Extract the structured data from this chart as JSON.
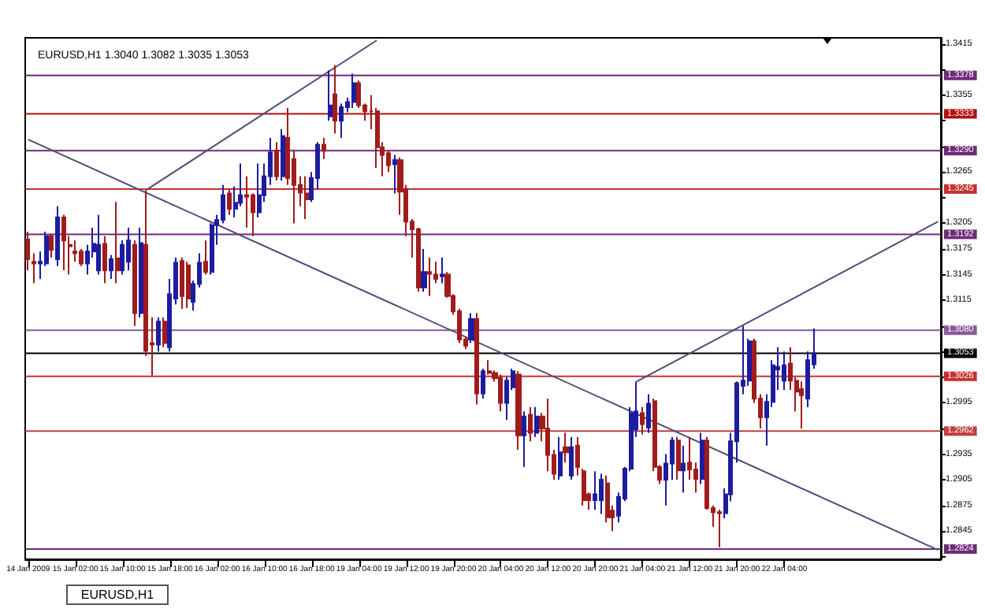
{
  "chart_data": {
    "type": "candlestick",
    "title": "EURUSD,H1 1.3040 1.3082 1.3035 1.3053",
    "annotations": [
      "EURUSD,H1"
    ],
    "categories": [
      "14 Jan 2009",
      null,
      null,
      null,
      null,
      null,
      null,
      null,
      "15 Jan 02:00",
      null,
      null,
      null,
      null,
      null,
      null,
      null,
      "15 Jan 10:00",
      null,
      null,
      null,
      null,
      null,
      null,
      null,
      "15 Jan 18:00",
      null,
      null,
      null,
      null,
      null,
      null,
      null,
      "16 Jan 02:00",
      null,
      null,
      null,
      null,
      null,
      null,
      null,
      "16 Jan 10:00",
      null,
      null,
      null,
      null,
      null,
      null,
      null,
      "16 Jan 18:00",
      null,
      null,
      null,
      null,
      null,
      null,
      null,
      "19 Jan 04:00",
      null,
      null,
      null,
      null,
      null,
      null,
      null,
      "19 Jan 12:00",
      null,
      null,
      null,
      null,
      null,
      null,
      null,
      "19 Jan 20:00",
      null,
      null,
      null,
      null,
      null,
      null,
      null,
      "20 Jan 04:00",
      null,
      null,
      null,
      null,
      null,
      null,
      null,
      "20 Jan 12:00",
      null,
      null,
      null,
      null,
      null,
      null,
      null,
      "20 Jan 20:00",
      null,
      null,
      null,
      null,
      null,
      null,
      null,
      "21 Jan 04:00",
      null,
      null,
      null,
      null,
      null,
      null,
      null,
      "21 Jan 12:00",
      null,
      null,
      null,
      null,
      null,
      null,
      null,
      "21 Jan 20:00",
      null,
      null,
      null,
      null,
      null,
      null,
      null,
      "22 Jan 04:00",
      null,
      null,
      null,
      null,
      null,
      null,
      null,
      null,
      null,
      null,
      null,
      null,
      null,
      null,
      null,
      null,
      null,
      null,
      null,
      null,
      null,
      null,
      null,
      null,
      null,
      null
    ],
    "ylim": [
      1.2812,
      1.3422
    ],
    "yticks": [
      {
        "value": 1.2815,
        "label": null
      },
      1.2845,
      1.2875,
      1.2905,
      1.2935,
      {
        "value": 1.2965,
        "label": null
      },
      1.2995,
      {
        "value": 1.3025,
        "label": null
      },
      {
        "value": 1.3055,
        "label": null
      },
      {
        "value": 1.3085,
        "label": null
      },
      1.3115,
      1.3145,
      1.3175,
      1.3205,
      {
        "value": 1.3235,
        "label": null
      },
      1.3265,
      {
        "value": 1.3295,
        "label": null
      },
      {
        "value": 1.3325,
        "label": null
      },
      1.3355,
      {
        "value": 1.3385,
        "label": null
      },
      1.3415
    ],
    "ref_lines": [
      {
        "axis": "y",
        "value": 1.3378,
        "label": "1.3378",
        "color": "#6e2a78"
      },
      {
        "axis": "y",
        "value": 1.3333,
        "label": "1.3333",
        "color": "#b01010"
      },
      {
        "axis": "y",
        "value": 1.329,
        "label": "1.3290",
        "color": "#6e2a78"
      },
      {
        "axis": "y",
        "value": 1.3245,
        "label": "1.3245",
        "color": "#c83030"
      },
      {
        "axis": "y",
        "value": 1.3192,
        "label": "1.3192",
        "color": "#6e2a78"
      },
      {
        "axis": "y",
        "value": 1.308,
        "label": "1.3080",
        "color": "#8a5a9a"
      },
      {
        "axis": "y",
        "value": 1.3053,
        "label": "1.3053",
        "color": "#000000"
      },
      {
        "axis": "y",
        "value": 1.3026,
        "label": "1.3026",
        "color": "#c83030"
      },
      {
        "axis": "y",
        "value": 1.2962,
        "label": "1.2962",
        "color": "#c04040"
      },
      {
        "axis": "y",
        "value": 1.2824,
        "label": "1.2824",
        "color": "#6e2a78"
      }
    ],
    "series": [
      {
        "type": "candlestick",
        "ohlc": [
          [
            1.3186,
            1.3195,
            1.315,
            1.3163
          ],
          [
            1.316,
            1.317,
            1.3135,
            1.3158
          ],
          [
            1.3158,
            1.3172,
            1.314,
            1.316
          ],
          [
            1.3158,
            1.3195,
            1.3155,
            1.319
          ],
          [
            1.319,
            1.3192,
            1.3165,
            1.3174
          ],
          [
            1.3163,
            1.3225,
            1.3155,
            1.3212
          ],
          [
            1.3212,
            1.3215,
            1.315,
            1.3185
          ],
          [
            1.318,
            1.319,
            1.3145,
            1.3178
          ],
          [
            1.3172,
            1.3185,
            1.316,
            1.317
          ],
          [
            1.3172,
            1.3175,
            1.3155,
            1.3158
          ],
          [
            1.3158,
            1.318,
            1.3145,
            1.3172
          ],
          [
            1.3172,
            1.32,
            1.3165,
            1.3181
          ],
          [
            1.315,
            1.3215,
            1.3145,
            1.318
          ],
          [
            1.3181,
            1.319,
            1.3135,
            1.315
          ],
          [
            1.315,
            1.3168,
            1.314,
            1.3163
          ],
          [
            1.3164,
            1.323,
            1.3135,
            1.315
          ],
          [
            1.315,
            1.3185,
            1.3145,
            1.318
          ],
          [
            1.316,
            1.32,
            1.315,
            1.3185
          ],
          [
            1.318,
            1.3185,
            1.3085,
            1.31
          ],
          [
            1.31,
            1.32,
            1.3095,
            1.3182
          ],
          [
            1.318,
            1.3244,
            1.305,
            1.3056
          ],
          [
            1.3065,
            1.3095,
            1.3027,
            1.3063
          ],
          [
            1.3063,
            1.3095,
            1.3055,
            1.309
          ],
          [
            1.309,
            1.3095,
            1.306,
            1.3065
          ],
          [
            1.306,
            1.314,
            1.3055,
            1.3122
          ],
          [
            1.3117,
            1.3165,
            1.311,
            1.3159
          ],
          [
            1.3161,
            1.3165,
            1.3105,
            1.312
          ],
          [
            1.3156,
            1.316,
            1.3106,
            1.3117
          ],
          [
            1.3113,
            1.3138,
            1.3103,
            1.3134
          ],
          [
            1.3134,
            1.317,
            1.313,
            1.3159
          ],
          [
            1.316,
            1.3185,
            1.3145,
            1.3148
          ],
          [
            1.3148,
            1.3205,
            1.3145,
            1.3203
          ],
          [
            1.3203,
            1.3215,
            1.318,
            1.3209
          ],
          [
            1.3209,
            1.325,
            1.3205,
            1.3238
          ],
          [
            1.324,
            1.3245,
            1.3215,
            1.3222
          ],
          [
            1.3222,
            1.3248,
            1.3212,
            1.3229
          ],
          [
            1.3229,
            1.3275,
            1.3225,
            1.3238
          ],
          [
            1.3238,
            1.326,
            1.32,
            1.3236
          ],
          [
            1.3238,
            1.324,
            1.319,
            1.3218
          ],
          [
            1.3218,
            1.3275,
            1.3212,
            1.3238
          ],
          [
            1.3238,
            1.3275,
            1.323,
            1.326
          ],
          [
            1.326,
            1.3305,
            1.325,
            1.3288
          ],
          [
            1.329,
            1.33,
            1.3255,
            1.326
          ],
          [
            1.326,
            1.3315,
            1.3255,
            1.3307
          ],
          [
            1.3305,
            1.334,
            1.325,
            1.3258
          ],
          [
            1.328,
            1.329,
            1.3205,
            1.325
          ],
          [
            1.325,
            1.326,
            1.3225,
            1.3241
          ],
          [
            1.324,
            1.326,
            1.321,
            1.3233
          ],
          [
            1.3233,
            1.3265,
            1.323,
            1.3258
          ],
          [
            1.3258,
            1.33,
            1.3245,
            1.3297
          ],
          [
            1.3297,
            1.3305,
            1.328,
            1.329
          ],
          [
            1.333,
            1.3384,
            1.3325,
            1.3343
          ],
          [
            1.3356,
            1.339,
            1.331,
            1.3325
          ],
          [
            1.3325,
            1.3345,
            1.3305,
            1.3341
          ],
          [
            1.3341,
            1.3352,
            1.3335,
            1.3347
          ],
          [
            1.3347,
            1.338,
            1.334,
            1.3369
          ],
          [
            1.3369,
            1.3372,
            1.334,
            1.3343
          ],
          [
            1.3343,
            1.3345,
            1.3325,
            1.3336
          ],
          [
            1.3336,
            1.3355,
            1.3315,
            1.3336
          ],
          [
            1.3336,
            1.334,
            1.327,
            1.3294
          ],
          [
            1.3294,
            1.33,
            1.326,
            1.3285
          ],
          [
            1.3287,
            1.329,
            1.3265,
            1.3273
          ],
          [
            1.3274,
            1.3285,
            1.324,
            1.3279
          ],
          [
            1.3279,
            1.3282,
            1.3215,
            1.3242
          ],
          [
            1.3245,
            1.325,
            1.319,
            1.3207
          ],
          [
            1.3207,
            1.321,
            1.3165,
            1.3198
          ],
          [
            1.3198,
            1.32,
            1.3125,
            1.313
          ],
          [
            1.313,
            1.3175,
            1.3125,
            1.3148
          ],
          [
            1.3148,
            1.3165,
            1.312,
            1.3146
          ],
          [
            1.3145,
            1.316,
            1.3135,
            1.314
          ],
          [
            1.3143,
            1.3165,
            1.3135,
            1.3145
          ],
          [
            1.3145,
            1.3148,
            1.3118,
            1.312
          ],
          [
            1.312,
            1.3122,
            1.3098,
            1.3102
          ],
          [
            1.3102,
            1.3105,
            1.3065,
            1.3069
          ],
          [
            1.3069,
            1.3072,
            1.3058,
            1.3062
          ],
          [
            1.3069,
            1.31,
            1.3065,
            1.3093
          ],
          [
            1.3093,
            1.31,
            1.2993,
            1.3006
          ],
          [
            1.3006,
            1.3035,
            1.3,
            1.3032
          ],
          [
            1.3032,
            1.3045,
            1.3028,
            1.303
          ],
          [
            1.303,
            1.3033,
            1.302,
            1.3024
          ],
          [
            1.3024,
            1.3028,
            1.2985,
            1.2995
          ],
          [
            1.2995,
            1.3025,
            1.2975,
            1.3021
          ],
          [
            1.3013,
            1.3035,
            1.301,
            1.3032
          ],
          [
            1.3028,
            1.3032,
            1.294,
            1.2957
          ],
          [
            1.2957,
            1.2985,
            1.292,
            1.2979
          ],
          [
            1.2981,
            1.299,
            1.295,
            1.296
          ],
          [
            1.296,
            1.299,
            1.2955,
            1.2979
          ],
          [
            1.2979,
            1.2983,
            1.295,
            1.2965
          ],
          [
            1.2965,
            1.3,
            1.2915,
            1.2934
          ],
          [
            1.2934,
            1.294,
            1.2905,
            1.2912
          ],
          [
            1.291,
            1.2955,
            1.2905,
            1.2937
          ],
          [
            1.2943,
            1.296,
            1.2925,
            1.2937
          ],
          [
            1.291,
            1.2955,
            1.2905,
            1.2943
          ],
          [
            1.2945,
            1.2955,
            1.291,
            1.292
          ],
          [
            1.2915,
            1.2918,
            1.2875,
            1.2881
          ],
          [
            1.2888,
            1.289,
            1.287,
            1.2881
          ],
          [
            1.2881,
            1.2915,
            1.287,
            1.2888
          ],
          [
            1.2881,
            1.2912,
            1.2865,
            1.2905
          ],
          [
            1.2901,
            1.291,
            1.2855,
            1.2861
          ],
          [
            1.2869,
            1.2875,
            1.2845,
            1.2861
          ],
          [
            1.2863,
            1.289,
            1.2855,
            1.2885
          ],
          [
            1.2883,
            1.292,
            1.288,
            1.2918
          ],
          [
            1.2918,
            1.299,
            1.2915,
            1.2983
          ],
          [
            1.2964,
            1.302,
            1.2955,
            1.2985
          ],
          [
            1.2983,
            1.299,
            1.2958,
            1.297
          ],
          [
            1.2966,
            1.3005,
            1.296,
            1.2994
          ],
          [
            1.2997,
            1.3,
            1.2915,
            1.292
          ],
          [
            1.292,
            1.2922,
            1.29,
            1.2905
          ],
          [
            1.2905,
            1.2935,
            1.2875,
            1.2924
          ],
          [
            1.2924,
            1.2955,
            1.2905,
            1.2951
          ],
          [
            1.2951,
            1.2955,
            1.2905,
            1.2916
          ],
          [
            1.2916,
            1.2945,
            1.289,
            1.2924
          ],
          [
            1.2925,
            1.2955,
            1.2905,
            1.2917
          ],
          [
            1.2917,
            1.2925,
            1.289,
            1.2906
          ],
          [
            1.2906,
            1.296,
            1.29,
            1.2951
          ],
          [
            1.2951,
            1.2955,
            1.287,
            1.2872
          ],
          [
            1.2872,
            1.2875,
            1.285,
            1.2867
          ],
          [
            1.2867,
            1.287,
            1.2826,
            1.2866
          ],
          [
            1.2866,
            1.2895,
            1.286,
            1.2888
          ],
          [
            1.2888,
            1.296,
            1.288,
            1.295
          ],
          [
            1.295,
            1.302,
            1.2925,
            1.3018
          ],
          [
            1.3015,
            1.3085,
            1.3005,
            1.3021
          ],
          [
            1.3021,
            1.307,
            1.3015,
            1.3067
          ],
          [
            1.3067,
            1.307,
            1.2995,
            1.3
          ],
          [
            1.3,
            1.3005,
            1.2965,
            1.2978
          ],
          [
            1.2978,
            1.3005,
            1.2945,
            1.2996
          ],
          [
            1.2996,
            1.3045,
            1.299,
            1.3039
          ],
          [
            1.3034,
            1.306,
            1.301,
            1.3037
          ],
          [
            1.3021,
            1.3055,
            1.301,
            1.3039
          ],
          [
            1.3041,
            1.306,
            1.301,
            1.3021
          ],
          [
            1.3021,
            1.3025,
            1.2985,
            1.3008
          ],
          [
            1.3011,
            1.302,
            1.2965,
            1.3004
          ],
          [
            1.3,
            1.3055,
            1.299,
            1.3045
          ],
          [
            1.304,
            1.3082,
            1.3035,
            1.3053
          ],
          null,
          null,
          null,
          null,
          null,
          null,
          null,
          null,
          null,
          null,
          null,
          null,
          null,
          null,
          null,
          null,
          null,
          null,
          null,
          null,
          null
        ],
        "colors": [
          "#a01c1c",
          "#a01c1c",
          "#1c1ca0",
          "#1c1ca0",
          "#a01c1c",
          "#1c1ca0",
          "#a01c1c",
          "#a01c1c",
          "#a01c1c",
          "#a01c1c",
          "#1c1ca0",
          "#1c1ca0",
          "#1c1ca0",
          "#a01c1c",
          "#1c1ca0",
          "#a01c1c",
          "#1c1ca0",
          "#1c1ca0",
          "#a01c1c",
          "#1c1ca0",
          "#a01c1c",
          "#a01c1c",
          "#1c1ca0",
          "#a01c1c",
          "#1c1ca0",
          "#1c1ca0",
          "#a01c1c",
          "#a01c1c",
          "#1c1ca0",
          "#1c1ca0",
          "#a01c1c",
          "#1c1ca0",
          "#1c1ca0",
          "#1c1ca0",
          "#a01c1c",
          "#1c1ca0",
          "#1c1ca0",
          "#a01c1c",
          "#a01c1c",
          "#1c1ca0",
          "#1c1ca0",
          "#1c1ca0",
          "#a01c1c",
          "#1c1ca0",
          "#a01c1c",
          "#a01c1c",
          "#a01c1c",
          "#a01c1c",
          "#1c1ca0",
          "#1c1ca0",
          "#a01c1c",
          "#1c1ca0",
          "#a01c1c",
          "#1c1ca0",
          "#1c1ca0",
          "#1c1ca0",
          "#a01c1c",
          "#a01c1c",
          "#a01c1c",
          "#a01c1c",
          "#a01c1c",
          "#a01c1c",
          "#1c1ca0",
          "#a01c1c",
          "#a01c1c",
          "#a01c1c",
          "#a01c1c",
          "#1c1ca0",
          "#a01c1c",
          "#a01c1c",
          "#1c1ca0",
          "#a01c1c",
          "#a01c1c",
          "#a01c1c",
          "#a01c1c",
          "#1c1ca0",
          "#a01c1c",
          "#1c1ca0",
          "#a01c1c",
          "#a01c1c",
          "#a01c1c",
          "#1c1ca0",
          "#1c1ca0",
          "#a01c1c",
          "#1c1ca0",
          "#a01c1c",
          "#1c1ca0",
          "#a01c1c",
          "#a01c1c",
          "#a01c1c",
          "#1c1ca0",
          "#a01c1c",
          "#1c1ca0",
          "#a01c1c",
          "#a01c1c",
          "#a01c1c",
          "#1c1ca0",
          "#1c1ca0",
          "#a01c1c",
          "#a01c1c",
          "#1c1ca0",
          "#1c1ca0",
          "#1c1ca0",
          "#1c1ca0",
          "#a01c1c",
          "#1c1ca0",
          "#a01c1c",
          "#a01c1c",
          "#1c1ca0",
          "#1c1ca0",
          "#a01c1c",
          "#1c1ca0",
          "#a01c1c",
          "#a01c1c",
          "#1c1ca0",
          "#a01c1c",
          "#a01c1c",
          "#a01c1c",
          "#1c1ca0",
          "#1c1ca0",
          "#1c1ca0",
          "#1c1ca0",
          "#1c1ca0",
          "#a01c1c",
          "#a01c1c",
          "#1c1ca0",
          "#1c1ca0",
          "#1c1ca0",
          "#1c1ca0",
          "#a01c1c",
          "#a01c1c",
          "#a01c1c",
          "#1c1ca0",
          "#1c1ca0",
          null,
          null,
          null,
          null,
          null,
          null,
          null,
          null,
          null,
          null,
          null,
          null,
          null,
          null,
          null,
          null,
          null,
          null,
          null,
          null,
          null
        ]
      },
      {
        "type": "line",
        "color": "#4d4d78",
        "values": [
          null,
          null,
          null,
          null,
          null,
          null,
          null,
          null,
          null,
          null,
          null,
          null,
          null,
          null,
          null,
          null,
          null,
          null,
          null,
          null,
          1.3244,
          null,
          null,
          null,
          null,
          null,
          null,
          null,
          null,
          null,
          null,
          null,
          null,
          null,
          null,
          null,
          null,
          null,
          null,
          null,
          null,
          null,
          null,
          null,
          null,
          null,
          null,
          null,
          null,
          null,
          null,
          null,
          null,
          null,
          null,
          null,
          null,
          null,
          null,
          1.3419,
          null,
          null,
          null,
          null,
          null,
          null,
          null,
          null,
          null,
          null,
          null,
          null,
          null,
          null,
          null,
          null,
          null,
          null,
          null,
          null,
          null,
          null,
          null,
          null,
          null,
          null,
          null,
          null,
          null,
          null,
          null,
          null,
          null,
          null,
          null,
          null,
          null,
          null,
          null,
          null,
          null,
          null,
          null,
          null,
          null,
          null,
          null,
          null,
          null,
          null,
          null,
          null,
          null,
          null,
          null,
          null,
          null,
          null,
          null,
          null,
          null,
          null,
          null,
          null,
          null,
          null,
          null,
          null,
          null,
          null,
          null,
          null,
          null,
          null,
          null,
          null,
          null,
          null,
          null,
          null,
          null,
          null,
          null,
          null,
          null,
          null,
          null,
          null,
          null,
          null,
          null,
          null,
          null,
          null,
          null
        ]
      },
      {
        "type": "line",
        "color": "#4d4d78",
        "values": [
          1.3303,
          null,
          null,
          null,
          null,
          null,
          null,
          null,
          null,
          null,
          null,
          null,
          null,
          null,
          null,
          null,
          null,
          null,
          null,
          null,
          null,
          null,
          null,
          null,
          null,
          null,
          null,
          null,
          null,
          null,
          null,
          null,
          null,
          null,
          null,
          null,
          null,
          null,
          null,
          null,
          null,
          null,
          null,
          null,
          null,
          null,
          null,
          null,
          null,
          null,
          null,
          null,
          null,
          null,
          null,
          null,
          null,
          null,
          null,
          null,
          null,
          null,
          null,
          null,
          null,
          null,
          null,
          null,
          null,
          null,
          null,
          null,
          null,
          null,
          null,
          null,
          null,
          null,
          null,
          null,
          null,
          null,
          null,
          null,
          null,
          null,
          null,
          null,
          null,
          null,
          null,
          null,
          null,
          null,
          null,
          null,
          null,
          null,
          null,
          null,
          null,
          null,
          null,
          null,
          null,
          null,
          null,
          null,
          null,
          null,
          null,
          null,
          null,
          null,
          null,
          null,
          null,
          null,
          null,
          null,
          null,
          null,
          null,
          null,
          null,
          null,
          null,
          null,
          null,
          null,
          null,
          null,
          null,
          null,
          null,
          null,
          null,
          null,
          null,
          null,
          null,
          null,
          null,
          null,
          null,
          null,
          null,
          null,
          null,
          null,
          null,
          null,
          null,
          null,
          1.2823
        ]
      },
      {
        "type": "line",
        "color": "#4d4d78",
        "values": [
          null,
          null,
          null,
          null,
          null,
          null,
          null,
          null,
          null,
          null,
          null,
          null,
          null,
          null,
          null,
          null,
          null,
          null,
          null,
          null,
          null,
          null,
          null,
          null,
          null,
          null,
          null,
          null,
          null,
          null,
          null,
          null,
          null,
          null,
          null,
          null,
          null,
          null,
          null,
          null,
          null,
          null,
          null,
          null,
          null,
          null,
          null,
          null,
          null,
          null,
          null,
          null,
          null,
          null,
          null,
          null,
          null,
          null,
          null,
          null,
          null,
          null,
          null,
          null,
          null,
          null,
          null,
          null,
          null,
          null,
          null,
          null,
          null,
          null,
          null,
          null,
          null,
          null,
          null,
          null,
          null,
          null,
          null,
          null,
          null,
          null,
          null,
          null,
          null,
          null,
          null,
          null,
          null,
          null,
          null,
          null,
          null,
          null,
          null,
          null,
          null,
          null,
          null,
          1.302,
          null,
          null,
          null,
          null,
          null,
          null,
          null,
          null,
          null,
          null,
          null,
          null,
          null,
          null,
          null,
          null,
          null,
          null,
          null,
          null,
          null,
          null,
          null,
          null,
          null,
          null,
          null,
          null,
          null,
          null,
          null,
          null,
          null,
          null,
          null,
          null,
          null,
          null,
          null,
          null,
          null,
          null,
          null,
          null,
          null,
          null,
          null,
          null,
          null,
          null,
          1.3207
        ]
      }
    ]
  }
}
